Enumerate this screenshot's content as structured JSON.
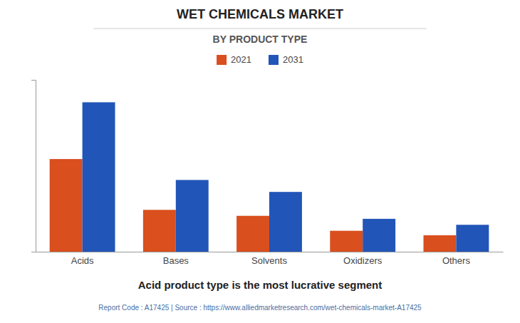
{
  "chart_data": {
    "type": "bar",
    "title": "WET CHEMICALS MARKET",
    "subtitle": "BY PRODUCT TYPE",
    "categories": [
      "Acids",
      "Bases",
      "Solvents",
      "Oxidizers",
      "Others"
    ],
    "series": [
      {
        "name": "2021",
        "color": "#d94f1e",
        "values": [
          62,
          28,
          24,
          14,
          11
        ]
      },
      {
        "name": "2031",
        "color": "#2255b8",
        "values": [
          100,
          48,
          40,
          22,
          18
        ]
      }
    ],
    "ylim": [
      0,
      115
    ],
    "yticks": [],
    "grid": false,
    "tick_labels": "x",
    "annotations": [
      "Acid product type is the most lucrative segment",
      "Report Code : A17425  |  Source : https://www.alliedmarketresearch.com/wet-chemicals-market-A17425"
    ]
  }
}
